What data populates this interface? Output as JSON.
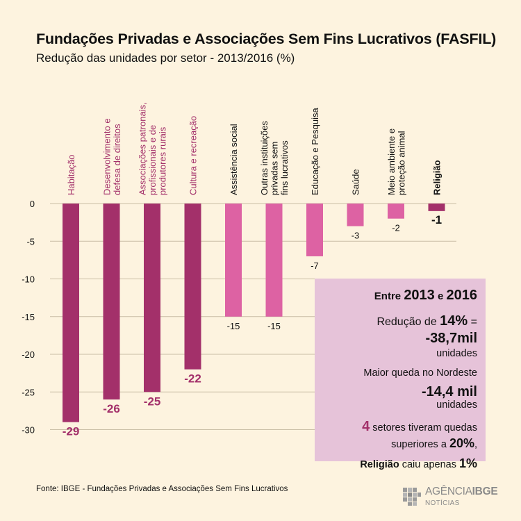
{
  "header": {
    "title": "Fundações Privadas e Associações Sem Fins Lucrativos (FASFIL)",
    "subtitle": "Redução das unidades por setor  - 2013/2016 (%)"
  },
  "chart_data": {
    "type": "bar",
    "title": "Fundações Privadas e Associações Sem Fins Lucrativos (FASFIL)",
    "subtitle": "Redução das unidades por setor  - 2013/2016 (%)",
    "ylim": [
      -30,
      0
    ],
    "yticks": [
      0,
      -5,
      -10,
      -15,
      -20,
      -25,
      -30
    ],
    "grid": true,
    "categories": [
      {
        "lines": [
          "Habitação"
        ],
        "value": -29,
        "label": "-29",
        "color": "#a3306a",
        "label_color": "#a3306a",
        "category_color": "#a3306a"
      },
      {
        "lines": [
          "Desenvolvimento e",
          "defesa de direitos"
        ],
        "value": -26,
        "label": "-26",
        "color": "#a3306a",
        "label_color": "#a3306a",
        "category_color": "#a3306a"
      },
      {
        "lines": [
          "Associações patronais,",
          "profissionais e de",
          "produtores rurais"
        ],
        "value": -25,
        "label": "-25",
        "color": "#a3306a",
        "label_color": "#a3306a",
        "category_color": "#a3306a"
      },
      {
        "lines": [
          "Cultura e recreação"
        ],
        "value": -22,
        "label": "-22",
        "color": "#a3306a",
        "label_color": "#a3306a",
        "category_color": "#a3306a"
      },
      {
        "lines": [
          "Assistência social"
        ],
        "value": -15,
        "label": "-15",
        "color": "#dd62a3",
        "label_color": "#111111",
        "category_color": "#111111"
      },
      {
        "lines": [
          "Outras instituições",
          "privadas sem",
          "fins lucrativos"
        ],
        "value": -15,
        "label": "-15",
        "color": "#dd62a3",
        "label_color": "#111111",
        "category_color": "#111111"
      },
      {
        "lines": [
          "Educação e Pesquisa"
        ],
        "value": -7,
        "label": "-7",
        "color": "#dd62a3",
        "label_color": "#111111",
        "category_color": "#111111"
      },
      {
        "lines": [
          "Saúde"
        ],
        "value": -3,
        "label": "-3",
        "color": "#dd62a3",
        "label_color": "#111111",
        "category_color": "#111111"
      },
      {
        "lines": [
          "Meio ambiente e",
          "proteção animal"
        ],
        "value": -2,
        "label": "-2",
        "color": "#dd62a3",
        "label_color": "#111111",
        "category_color": "#111111"
      },
      {
        "lines": [
          "Religião"
        ],
        "value": -1,
        "label": "-1",
        "color": "#a3306a",
        "label_color": "#111111",
        "category_color": "#111111",
        "bold": true
      }
    ]
  },
  "infobox": {
    "l1_pre": "Entre ",
    "l1_y1": "2013",
    "l1_mid": " e ",
    "l1_y2": "2016",
    "l2_pre": "Redução de ",
    "l2_pct": "14%",
    "l2_eq": " = ",
    "l2_val": "-38,7mil",
    "l3": "unidades",
    "l4": "Maior queda no Nordeste",
    "l5": "-14,4 mil",
    "l6": "unidades",
    "l7_num": "4",
    "l7_rest": " setores tiveram quedas",
    "l8_pre": "superiores a ",
    "l8_pct": "20%",
    "l8_post": ",",
    "l9_bold": "Religião",
    "l9_mid": " caiu apenas ",
    "l9_pct": "1%"
  },
  "footer": {
    "source": "Fonte: IBGE - Fundações Privadas e Associações Sem Fins Lucrativos",
    "logo_brand_a": "AGÊNCIA",
    "logo_brand_b": "IBGE",
    "logo_sub": "NOTÍCIAS"
  },
  "colors": {
    "background": "#fdf3df",
    "dark_magenta": "#a3306a",
    "light_magenta": "#dd62a3",
    "infobox_bg": "#e6c3d9",
    "grid": "#c9bda5"
  }
}
